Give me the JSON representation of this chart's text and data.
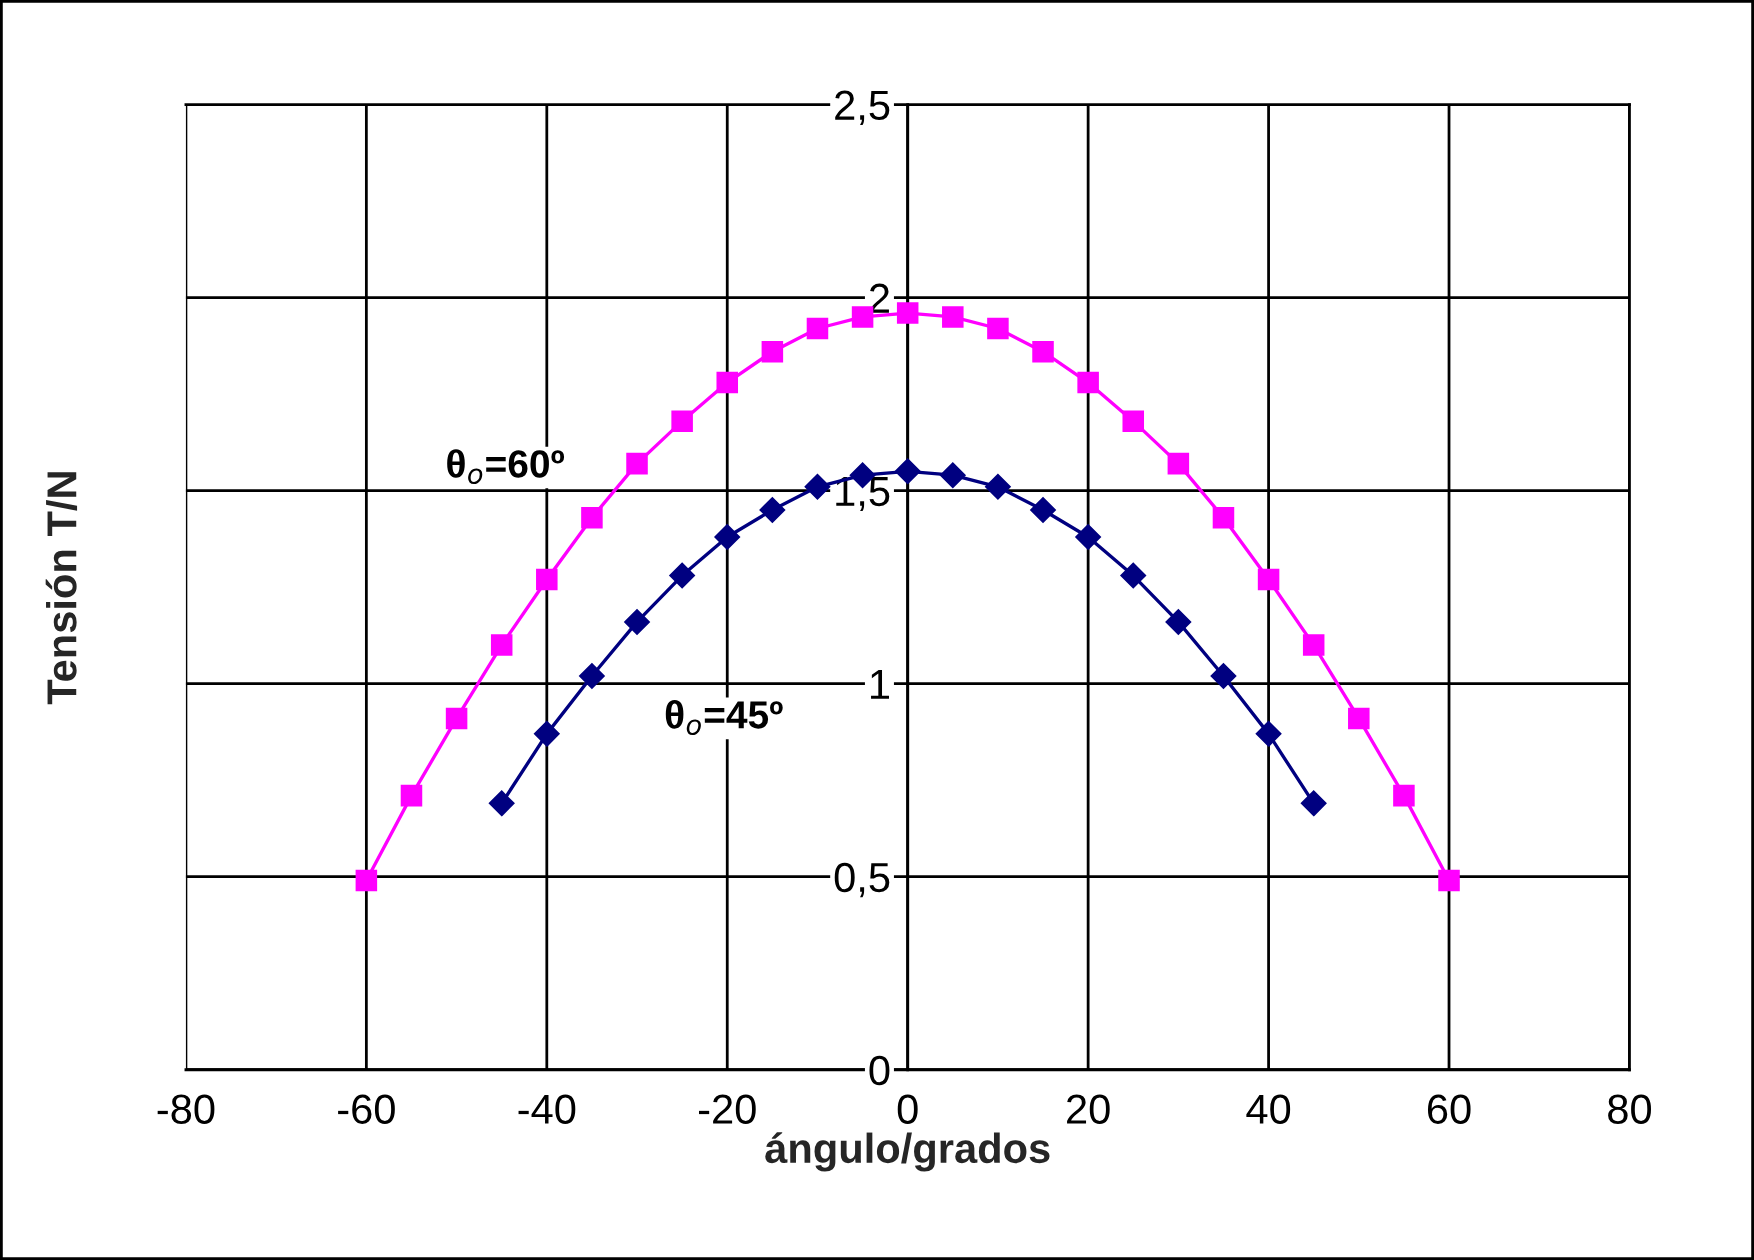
{
  "chart_data": {
    "type": "line",
    "xlabel": "ángulo/grados",
    "ylabel": "Tensión T/N",
    "xlim": [
      -80,
      80
    ],
    "xticks": [
      -80,
      -60,
      -40,
      -20,
      0,
      20,
      40,
      60,
      80
    ],
    "ylim": [
      0,
      2.5
    ],
    "yticks": [
      0,
      {
        "value": 0.5,
        "label": "0,5"
      },
      1,
      {
        "value": 1.5,
        "label": "1,5"
      },
      2,
      {
        "value": 2.5,
        "label": "2,5"
      }
    ],
    "grid": true,
    "legend": false,
    "series": [
      {
        "name": "θ$_{o}$=60º",
        "color": "#ff00ff",
        "marker": "square",
        "x": [
          -60,
          -55,
          -50,
          -45,
          -40,
          -35,
          -30,
          -25,
          -20,
          -15,
          -10,
          -5,
          0,
          5,
          10,
          15,
          20,
          25,
          30,
          35,
          40,
          45,
          50,
          55,
          60
        ],
        "values": [
          0.49,
          0.71,
          0.91,
          1.1,
          1.27,
          1.43,
          1.57,
          1.68,
          1.78,
          1.86,
          1.92,
          1.95,
          1.96,
          1.95,
          1.92,
          1.86,
          1.78,
          1.68,
          1.57,
          1.43,
          1.27,
          1.1,
          0.91,
          0.71,
          0.49
        ]
      },
      {
        "name": "θ$_{o}$=45º",
        "color": "#000080",
        "marker": "diamond",
        "x": [
          -45,
          -40,
          -35,
          -30,
          -25,
          -20,
          -15,
          -10,
          -5,
          0,
          5,
          10,
          15,
          20,
          25,
          30,
          35,
          40,
          45
        ],
        "values": [
          0.69,
          0.87,
          1.02,
          1.16,
          1.28,
          1.38,
          1.45,
          1.51,
          1.54,
          1.55,
          1.54,
          1.51,
          1.45,
          1.38,
          1.28,
          1.16,
          1.02,
          0.87,
          0.69
        ]
      }
    ]
  }
}
